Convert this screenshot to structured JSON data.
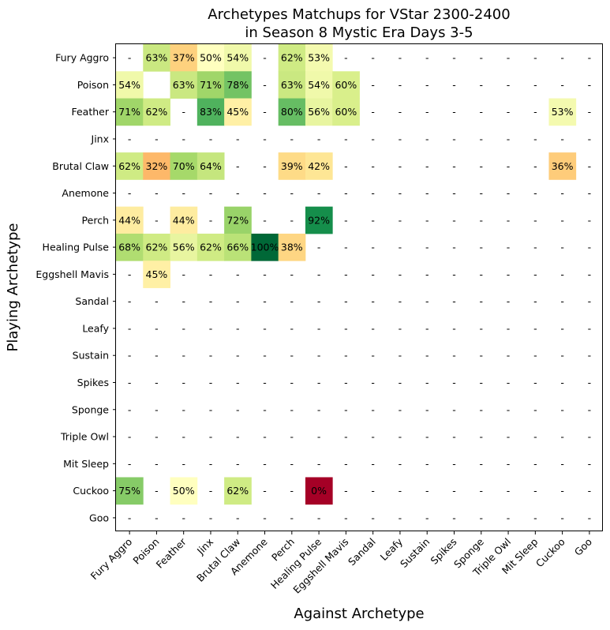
{
  "chart_data": {
    "type": "heatmap",
    "title_lines": [
      "Archetypes Matchups for VStar 2300-2400",
      "in Season 8 Mystic Era Days 3-5"
    ],
    "xlabel": "Against Archetype",
    "ylabel": "Playing Archetype",
    "x_categories": [
      "Fury Aggro",
      "Poison",
      "Feather",
      "Jinx",
      "Brutal Claw",
      "Anemone",
      "Perch",
      "Healing Pulse",
      "Eggshell Mavis",
      "Sandal",
      "Leafy",
      "Sustain",
      "Spikes",
      "Sponge",
      "Triple Owl",
      "Mit Sleep",
      "Cuckoo",
      "Goo"
    ],
    "y_categories": [
      "Fury Aggro",
      "Poison",
      "Feather",
      "Jinx",
      "Brutal Claw",
      "Anemone",
      "Perch",
      "Healing Pulse",
      "Eggshell Mavis",
      "Sandal",
      "Leafy",
      "Sustain",
      "Spikes",
      "Sponge",
      "Triple Owl",
      "Mit Sleep",
      "Cuckoo",
      "Goo"
    ],
    "missing_label": "-",
    "colormap": "RdYlGn",
    "value_range": [
      0,
      100
    ],
    "values": [
      [
        null,
        63,
        37,
        50,
        54,
        null,
        62,
        53,
        null,
        null,
        null,
        null,
        null,
        null,
        null,
        null,
        null,
        null
      ],
      [
        54,
        "",
        63,
        71,
        78,
        null,
        63,
        54,
        60,
        null,
        null,
        null,
        null,
        null,
        null,
        null,
        null,
        null
      ],
      [
        71,
        62,
        null,
        83,
        45,
        null,
        80,
        56,
        60,
        null,
        null,
        null,
        null,
        null,
        null,
        null,
        53,
        null
      ],
      [
        null,
        null,
        null,
        null,
        null,
        null,
        null,
        null,
        null,
        null,
        null,
        null,
        null,
        null,
        null,
        null,
        null,
        null
      ],
      [
        62,
        32,
        70,
        64,
        null,
        null,
        39,
        42,
        null,
        null,
        null,
        null,
        null,
        null,
        null,
        null,
        36,
        null
      ],
      [
        null,
        null,
        null,
        null,
        null,
        null,
        null,
        null,
        null,
        null,
        null,
        null,
        null,
        null,
        null,
        null,
        null,
        null
      ],
      [
        44,
        null,
        44,
        null,
        72,
        null,
        null,
        92,
        null,
        null,
        null,
        null,
        null,
        null,
        null,
        null,
        null,
        null
      ],
      [
        68,
        62,
        56,
        62,
        66,
        100,
        38,
        null,
        null,
        null,
        null,
        null,
        null,
        null,
        null,
        null,
        null,
        null
      ],
      [
        null,
        45,
        null,
        null,
        null,
        null,
        null,
        null,
        null,
        null,
        null,
        null,
        null,
        null,
        null,
        null,
        null,
        null
      ],
      [
        null,
        null,
        null,
        null,
        null,
        null,
        null,
        null,
        null,
        null,
        null,
        null,
        null,
        null,
        null,
        null,
        null,
        null
      ],
      [
        null,
        null,
        null,
        null,
        null,
        null,
        null,
        null,
        null,
        null,
        null,
        null,
        null,
        null,
        null,
        null,
        null,
        null
      ],
      [
        null,
        null,
        null,
        null,
        null,
        null,
        null,
        null,
        null,
        null,
        null,
        null,
        null,
        null,
        null,
        null,
        null,
        null
      ],
      [
        null,
        null,
        null,
        null,
        null,
        null,
        null,
        null,
        null,
        null,
        null,
        null,
        null,
        null,
        null,
        null,
        null,
        null
      ],
      [
        null,
        null,
        null,
        null,
        null,
        null,
        null,
        null,
        null,
        null,
        null,
        null,
        null,
        null,
        null,
        null,
        null,
        null
      ],
      [
        null,
        null,
        null,
        null,
        null,
        null,
        null,
        null,
        null,
        null,
        null,
        null,
        null,
        null,
        null,
        null,
        null,
        null
      ],
      [
        null,
        null,
        null,
        null,
        null,
        null,
        null,
        null,
        null,
        null,
        null,
        null,
        null,
        null,
        null,
        null,
        null,
        null
      ],
      [
        75,
        null,
        50,
        null,
        62,
        null,
        null,
        0,
        null,
        null,
        null,
        null,
        null,
        null,
        null,
        null,
        null,
        null
      ],
      [
        null,
        null,
        null,
        null,
        null,
        null,
        null,
        null,
        null,
        null,
        null,
        null,
        null,
        null,
        null,
        null,
        null,
        null
      ]
    ]
  }
}
